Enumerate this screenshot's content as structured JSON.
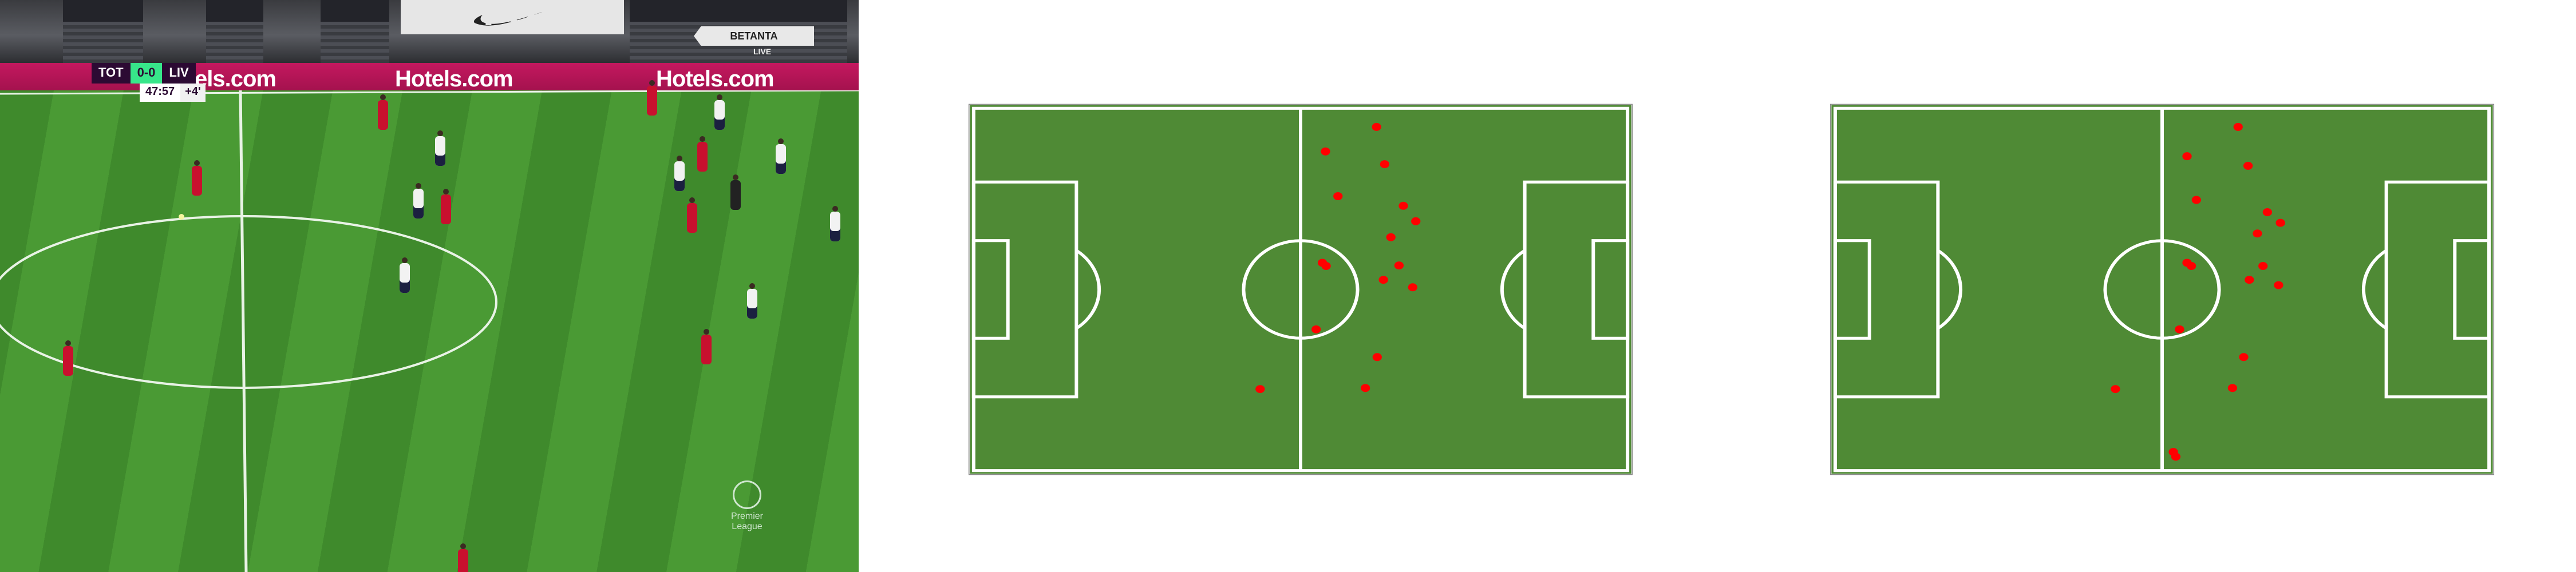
{
  "broadcast": {
    "home_team": "TOT",
    "away_team": "LIV",
    "score": "0-0",
    "clock": "47:57",
    "added_time": "+4'",
    "boards": [
      "els.com",
      "Hotels.com",
      "Hotels.com"
    ],
    "tv_brand": "BETANTA",
    "tv_live": "LIVE",
    "competition_logo_text": "Premier League"
  },
  "colors": {
    "pitch_diagram": "#4f8a35",
    "player_dot": "#ff0000",
    "liverpool_kit": "#c8102e",
    "tottenham_kit": "#f2f2f2",
    "ad_boards": "#c4185f",
    "score_accent": "#37e68a"
  },
  "pitch_left": {
    "players": [
      {
        "x": 64.7,
        "y": 3.5
      },
      {
        "x": 56.5,
        "y": 8.1
      },
      {
        "x": 66.0,
        "y": 10.5
      },
      {
        "x": 58.5,
        "y": 16.5
      },
      {
        "x": 69.0,
        "y": 18.3
      },
      {
        "x": 71.0,
        "y": 21.2
      },
      {
        "x": 67.0,
        "y": 24.2
      },
      {
        "x": 56.0,
        "y": 29.0
      },
      {
        "x": 56.6,
        "y": 29.6
      },
      {
        "x": 68.3,
        "y": 29.5
      },
      {
        "x": 65.8,
        "y": 32.2
      },
      {
        "x": 70.5,
        "y": 33.6
      },
      {
        "x": 55.0,
        "y": 41.5
      },
      {
        "x": 64.8,
        "y": 46.7
      },
      {
        "x": 62.9,
        "y": 52.5
      },
      {
        "x": 46.0,
        "y": 52.7
      }
    ]
  },
  "pitch_right": {
    "players": [
      {
        "x": 64.7,
        "y": 3.5
      },
      {
        "x": 56.5,
        "y": 9.0
      },
      {
        "x": 66.3,
        "y": 10.8
      },
      {
        "x": 58.0,
        "y": 17.2
      },
      {
        "x": 69.4,
        "y": 19.5
      },
      {
        "x": 71.5,
        "y": 21.5
      },
      {
        "x": 67.8,
        "y": 23.5
      },
      {
        "x": 56.5,
        "y": 29.0
      },
      {
        "x": 57.2,
        "y": 29.6
      },
      {
        "x": 68.7,
        "y": 29.6
      },
      {
        "x": 66.5,
        "y": 32.2
      },
      {
        "x": 71.2,
        "y": 33.2
      },
      {
        "x": 55.3,
        "y": 41.5
      },
      {
        "x": 65.6,
        "y": 46.7
      },
      {
        "x": 63.8,
        "y": 52.5
      },
      {
        "x": 45.0,
        "y": 52.7
      },
      {
        "x": 54.3,
        "y": 64.5
      },
      {
        "x": 54.7,
        "y": 65.4
      }
    ]
  }
}
